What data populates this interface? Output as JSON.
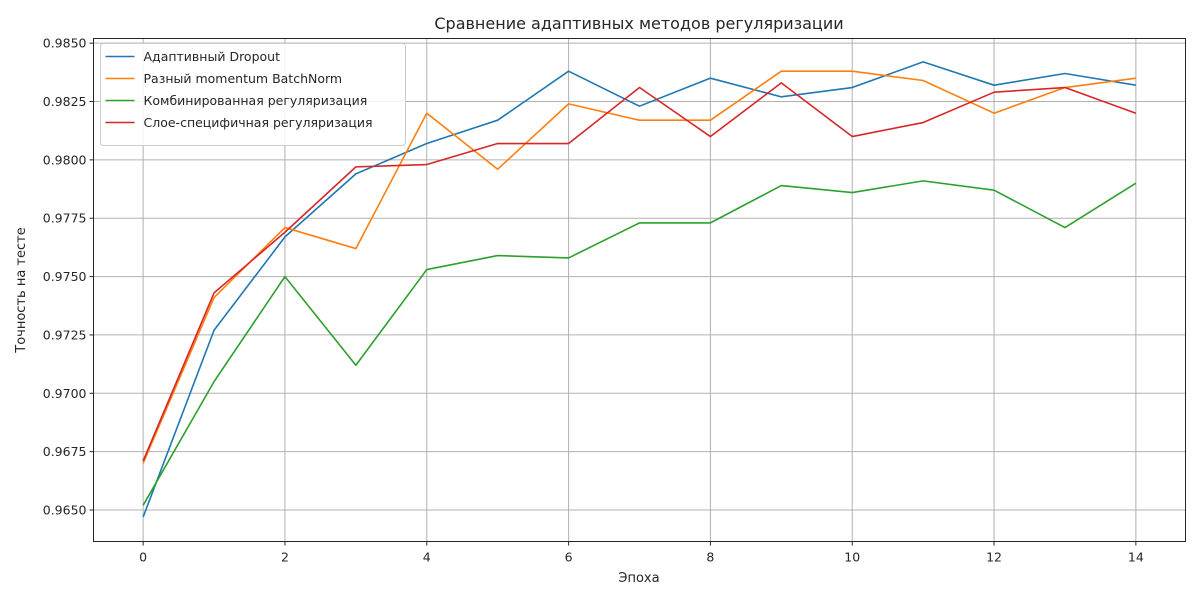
{
  "chart_data": {
    "type": "line",
    "title": "Сравнение адаптивных методов регуляризации",
    "xlabel": "Эпоха",
    "ylabel": "Точность на тесте",
    "xlim": [
      -0.7,
      14.7
    ],
    "ylim": [
      0.96365,
      0.9852
    ],
    "x_ticks": [
      0,
      2,
      4,
      6,
      8,
      10,
      12,
      14
    ],
    "x_tick_labels": [
      "0",
      "2",
      "4",
      "6",
      "8",
      "10",
      "12",
      "14"
    ],
    "y_ticks": [
      0.965,
      0.9675,
      0.97,
      0.9725,
      0.975,
      0.9775,
      0.98,
      0.9825,
      0.985
    ],
    "y_tick_labels": [
      "0.9650",
      "0.9675",
      "0.9700",
      "0.9725",
      "0.9750",
      "0.9775",
      "0.9800",
      "0.9825",
      "0.9850"
    ],
    "grid": true,
    "legend_position": "top-left",
    "x": [
      0,
      1,
      2,
      3,
      4,
      5,
      6,
      7,
      8,
      9,
      10,
      11,
      12,
      13,
      14
    ],
    "series": [
      {
        "name": "Адаптивный Dropout",
        "color": "#1f77b4",
        "values": [
          0.9647,
          0.9727,
          0.9767,
          0.9794,
          0.9807,
          0.9817,
          0.9838,
          0.9823,
          0.9835,
          0.9827,
          0.9831,
          0.9842,
          0.9832,
          0.9837,
          0.9832
        ]
      },
      {
        "name": "Разный momentum BatchNorm",
        "color": "#ff7f0e",
        "values": [
          0.967,
          0.9741,
          0.9771,
          0.9762,
          0.982,
          0.9796,
          0.9824,
          0.9817,
          0.9817,
          0.9838,
          0.9838,
          0.9834,
          0.982,
          0.9831,
          0.9835
        ]
      },
      {
        "name": "Комбинированная регуляризация",
        "color": "#2ca02c",
        "values": [
          0.9652,
          0.9705,
          0.975,
          0.9712,
          0.9753,
          0.9759,
          0.9758,
          0.9773,
          0.9773,
          0.9789,
          0.9786,
          0.9791,
          0.9787,
          0.9771,
          0.979
        ]
      },
      {
        "name": "Слое-специфичная регуляризация",
        "color": "#d62728",
        "values": [
          0.9671,
          0.9743,
          0.9769,
          0.9797,
          0.9798,
          0.9807,
          0.9807,
          0.9831,
          0.981,
          0.9833,
          0.981,
          0.9816,
          0.9829,
          0.9831,
          0.982
        ]
      }
    ]
  }
}
